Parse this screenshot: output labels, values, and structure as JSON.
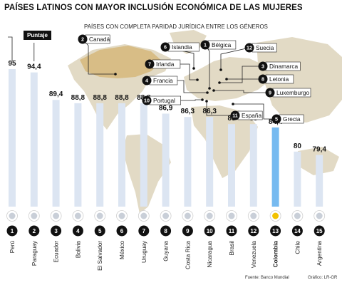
{
  "title": "PAÍSES LATINOS CON MAYOR INCLUSIÓN ECONÓMICA DE LAS MUJERES",
  "score_tag": "Puntaje",
  "map": {
    "subtitle": "PAÍSES CON COMPLETA PARIDAD JURÍDICA ENTRE LOS GÉNEROS",
    "countries": [
      {
        "num": "1",
        "name": "Bélgica"
      },
      {
        "num": "2",
        "name": "Canadá"
      },
      {
        "num": "3",
        "name": "Dinamarca"
      },
      {
        "num": "4",
        "name": "Francia"
      },
      {
        "num": "5",
        "name": "Grecia"
      },
      {
        "num": "6",
        "name": "Islandia"
      },
      {
        "num": "7",
        "name": "Irlanda"
      },
      {
        "num": "8",
        "name": "Letonia"
      },
      {
        "num": "9",
        "name": "Luxemburgo"
      },
      {
        "num": "10",
        "name": "Portugal"
      },
      {
        "num": "11",
        "name": "España"
      },
      {
        "num": "12",
        "name": "Suecia"
      }
    ]
  },
  "chart_data": {
    "type": "bar",
    "title": "PAÍSES LATINOS CON MAYOR INCLUSIÓN ECONÓMICA DE LAS MUJERES",
    "categories": [
      "Perú",
      "Paraguay",
      "Ecuador",
      "Bolivia",
      "El Salvador",
      "México",
      "Uruguay",
      "Guyana",
      "Costa Rica",
      "Nicaragua",
      "Brasil",
      "Venezuela",
      "Colombia",
      "Chile",
      "Argentina"
    ],
    "values": [
      95,
      94.4,
      89.4,
      88.8,
      88.8,
      88.8,
      88.8,
      86.9,
      86.3,
      86.3,
      85,
      85,
      84.4,
      80,
      79.4
    ],
    "value_labels": [
      "95",
      "94,4",
      "89,4",
      "88,8",
      "88,8",
      "88,8",
      "88,8",
      "86,9",
      "86,3",
      "86,3",
      "85",
      "85",
      "84,4",
      "80",
      "79,4"
    ],
    "ranks": [
      "1",
      "2",
      "3",
      "4",
      "5",
      "6",
      "7",
      "8",
      "9",
      "10",
      "11",
      "12",
      "13",
      "14",
      "15"
    ],
    "highlight": "Colombia",
    "colors": {
      "bar": "#dce5f2",
      "highlight": "#76baf0"
    }
  },
  "source": "Fuente: Banco Mundial",
  "credit": "Gráfico: LR-GR"
}
